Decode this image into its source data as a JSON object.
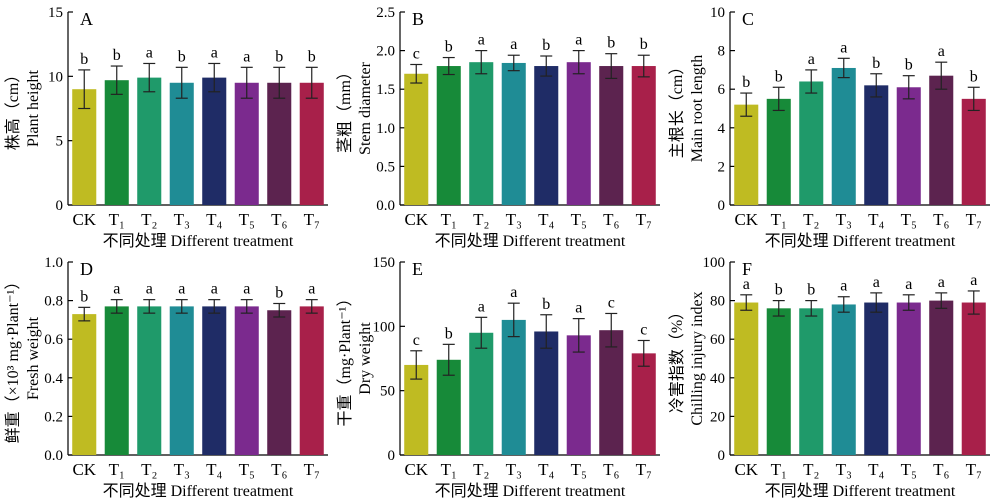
{
  "colors": [
    "#bfbb22",
    "#178a39",
    "#1f9a6a",
    "#1f8c95",
    "#1f2c66",
    "#7b2a8e",
    "#5c234f",
    "#a8204a"
  ],
  "chart_data": [
    {
      "type": "bar",
      "panel": "A",
      "ylabel": [
        "株高（cm）",
        "Plant height"
      ],
      "xlabel": "不同处理 Different treatment",
      "categories": [
        "CK",
        "T₁",
        "T₂",
        "T₃",
        "T₄",
        "T₅",
        "T₆",
        "T₇"
      ],
      "values": [
        9.0,
        9.7,
        9.9,
        9.5,
        9.9,
        9.5,
        9.5,
        9.5
      ],
      "errors": [
        1.5,
        1.1,
        1.1,
        1.2,
        1.1,
        1.2,
        1.2,
        1.2
      ],
      "letters": [
        "b",
        "b",
        "a",
        "b",
        "a",
        "a",
        "b",
        "b"
      ],
      "ylim": [
        0,
        15
      ],
      "yticks": [
        0,
        5,
        10,
        15
      ]
    },
    {
      "type": "bar",
      "panel": "B",
      "ylabel": [
        "茎粗（mm）",
        "Stem diameter"
      ],
      "xlabel": "不同处理 Different treatment",
      "categories": [
        "CK",
        "T₁",
        "T₂",
        "T₃",
        "T₄",
        "T₅",
        "T₆",
        "T₇"
      ],
      "values": [
        1.7,
        1.8,
        1.85,
        1.84,
        1.8,
        1.85,
        1.8,
        1.8
      ],
      "errors": [
        0.12,
        0.11,
        0.15,
        0.1,
        0.13,
        0.15,
        0.16,
        0.14
      ],
      "letters": [
        "c",
        "b",
        "a",
        "a",
        "b",
        "a",
        "b",
        "b"
      ],
      "ylim": [
        0.0,
        2.5
      ],
      "yticks": [
        "0.0",
        "0.5",
        "1.0",
        "1.5",
        "2.0",
        "2.5"
      ]
    },
    {
      "type": "bar",
      "panel": "C",
      "ylabel": [
        "主根长（cm）",
        "Main root length"
      ],
      "xlabel": "不同处理 Different treatment",
      "categories": [
        "CK",
        "T₁",
        "T₂",
        "T₃",
        "T₄",
        "T₅",
        "T₆",
        "T₇"
      ],
      "values": [
        5.2,
        5.5,
        6.4,
        7.1,
        6.2,
        6.1,
        6.7,
        5.5
      ],
      "errors": [
        0.6,
        0.6,
        0.6,
        0.5,
        0.6,
        0.6,
        0.7,
        0.6
      ],
      "letters": [
        "b",
        "b",
        "a",
        "a",
        "b",
        "b",
        "a",
        "b"
      ],
      "ylim": [
        0,
        10
      ],
      "yticks": [
        0,
        2,
        4,
        6,
        8,
        10
      ]
    },
    {
      "type": "bar",
      "panel": "D",
      "ylabel": [
        "鲜重（×10³ mg·Plant⁻¹）",
        "Fresh weight"
      ],
      "xlabel": "不同处理 Different treatment",
      "categories": [
        "CK",
        "T₁",
        "T₂",
        "T₃",
        "T₄",
        "T₅",
        "T₆",
        "T₇"
      ],
      "values": [
        0.73,
        0.77,
        0.77,
        0.77,
        0.77,
        0.77,
        0.75,
        0.77
      ],
      "errors": [
        0.035,
        0.035,
        0.035,
        0.035,
        0.035,
        0.035,
        0.035,
        0.035
      ],
      "letters": [
        "b",
        "a",
        "a",
        "a",
        "a",
        "a",
        "b",
        "a"
      ],
      "ylim": [
        0.0,
        1.0
      ],
      "yticks": [
        "0.0",
        "0.2",
        "0.4",
        "0.6",
        "0.8",
        "1.0"
      ]
    },
    {
      "type": "bar",
      "panel": "E",
      "ylabel": [
        "干重（mg·Plant⁻¹）",
        "Dry weight"
      ],
      "xlabel": "不同处理 Different treatment",
      "categories": [
        "CK",
        "T₁",
        "T₂",
        "T₃",
        "T₄",
        "T₅",
        "T₆",
        "T₇"
      ],
      "values": [
        70,
        74,
        95,
        105,
        96,
        93,
        97,
        79
      ],
      "errors": [
        11,
        12,
        12,
        13,
        13,
        13,
        13,
        10
      ],
      "letters": [
        "c",
        "b",
        "a",
        "a",
        "b",
        "a",
        "c",
        "c"
      ],
      "ylim": [
        0,
        150
      ],
      "yticks": [
        0,
        50,
        100,
        150
      ]
    },
    {
      "type": "bar",
      "panel": "F",
      "ylabel": [
        "冷害指数（%）",
        "Chilling injury index"
      ],
      "xlabel": "不同处理 Different treatment",
      "categories": [
        "CK",
        "T₁",
        "T₂",
        "T₃",
        "T₄",
        "T₅",
        "T₆",
        "T₇"
      ],
      "values": [
        79,
        76,
        76,
        78,
        79,
        79,
        80,
        79
      ],
      "errors": [
        4,
        4,
        4,
        4,
        5,
        4,
        4,
        6
      ],
      "letters": [
        "a",
        "b",
        "b",
        "a",
        "a",
        "a",
        "a",
        "a"
      ],
      "ylim": [
        0,
        100
      ],
      "yticks": [
        0,
        20,
        40,
        60,
        80,
        100
      ]
    }
  ]
}
